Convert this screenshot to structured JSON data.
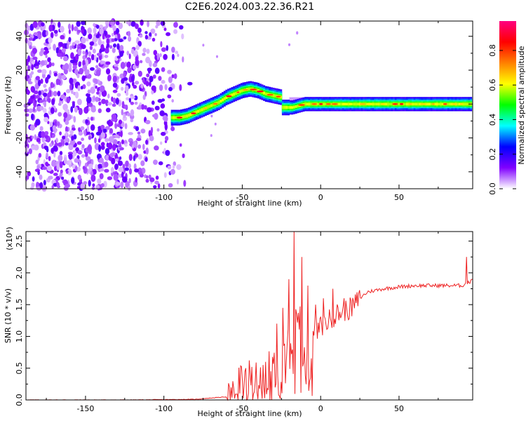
{
  "figure": {
    "title": "C2E6.2024.003.22.36.R21"
  },
  "chart_data": [
    {
      "type": "heatmap",
      "xlabel": "Height of straight line (km)",
      "ylabel": "Frequency (Hz)",
      "xlim": [
        -188,
        97
      ],
      "ylim": [
        -50,
        49
      ],
      "x_ticks": [
        -150,
        -100,
        -50,
        0,
        50
      ],
      "y_ticks": [
        -40,
        -20,
        0,
        20,
        40
      ],
      "colorbar": {
        "label": "Normalized spectral amplitude",
        "range": [
          0.0,
          0.97
        ],
        "ticks": [
          "0.0",
          "0.2",
          "0.4",
          "0.6",
          "0.8"
        ],
        "colormap": [
          "#ffffff",
          "#8000ff",
          "#0000ff",
          "#00ffff",
          "#00ff00",
          "#ffff00",
          "#ff8000",
          "#ff0000",
          "#ff0080"
        ]
      },
      "noise_region": {
        "x_range": [
          -188,
          -80
        ],
        "frequency_range": [
          -50,
          49
        ]
      },
      "ridge": {
        "x": [
          -95,
          -90,
          -85,
          -80,
          -75,
          -70,
          -65,
          -60,
          -55,
          -50,
          -45,
          -40,
          -35,
          -30,
          -25,
          -22,
          -18,
          -10,
          0,
          10,
          25,
          50,
          75,
          90,
          95
        ],
        "frequency": [
          -8,
          -8,
          -7,
          -5,
          -3,
          -1,
          1,
          4,
          6,
          8,
          9,
          8,
          6,
          5,
          4,
          -2,
          -2,
          0,
          0,
          0,
          0,
          0,
          0,
          0,
          0
        ]
      }
    },
    {
      "type": "line",
      "xlabel": "Height of straight line (km)",
      "ylabel": "SNR (10 * v/v)",
      "y_scale_label": "(x10⁴)",
      "xlim": [
        -188,
        97
      ],
      "ylim": [
        0,
        2.65
      ],
      "x_ticks": [
        -150,
        -100,
        -50,
        0,
        50
      ],
      "y_ticks": [
        "0.0",
        "0.5",
        "1.0",
        "1.5",
        "2.0",
        "2.5"
      ],
      "line_color": "#ee2222",
      "series": [
        {
          "x": [
            -188,
            -120,
            -80,
            -60,
            -55,
            -50,
            -45,
            -40,
            -35,
            -30,
            -25,
            -20,
            -15,
            -10,
            -5,
            0,
            10,
            20,
            25,
            30,
            40,
            50,
            60,
            70,
            80,
            90,
            95,
            97
          ],
          "values": [
            0.0,
            0.0,
            0.01,
            0.05,
            0.15,
            0.3,
            0.25,
            0.4,
            0.35,
            0.5,
            0.65,
            0.85,
            0.9,
            0.95,
            1.0,
            1.15,
            1.35,
            1.45,
            1.6,
            1.7,
            1.75,
            1.78,
            1.8,
            1.8,
            1.8,
            1.8,
            1.85,
            1.95
          ],
          "spikes": [
            [
              -35,
              0.6
            ],
            [
              -32,
              0.45
            ],
            [
              -28,
              1.2
            ],
            [
              -24,
              1.45
            ],
            [
              -20,
              1.9
            ],
            [
              -17,
              2.65
            ],
            [
              -12,
              2.25
            ],
            [
              -8,
              1.8
            ],
            [
              -3,
              1.5
            ],
            [
              2,
              1.6
            ],
            [
              8,
              1.75
            ],
            [
              15,
              1.6
            ],
            [
              93,
              2.25
            ],
            [
              97,
              1.9
            ]
          ]
        }
      ]
    }
  ]
}
